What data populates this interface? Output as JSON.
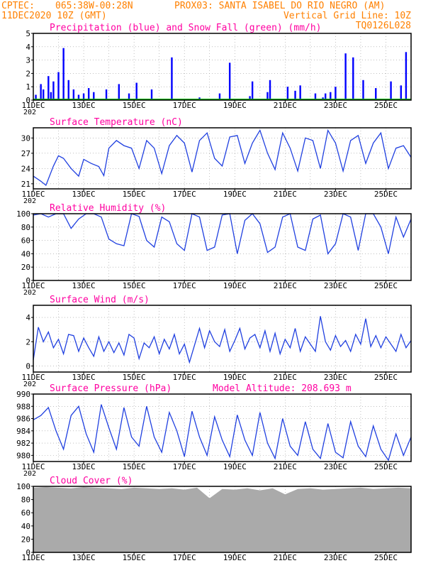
{
  "header": {
    "line1_left": "CPTEC:",
    "line1_coords": "065:38W-00:28N",
    "line1_station": "PROX03: SANTA ISABEL DO RIO NEGRO (AM)",
    "line2_left": "11DEC2020 10Z (GMT)",
    "line2_right": "Vertical Grid Line: 10Z",
    "line3_right": "TQ0126L028",
    "color": "#ff8000"
  },
  "colors": {
    "title": "#ff00a0",
    "line": "#2040e0",
    "bar_blue": "#0000ff",
    "snow_green": "#00b000",
    "cloud_gray": "#aaaaaa",
    "grid": "#999999"
  },
  "x_ticks": [
    "11DEC",
    "13DEC",
    "15DEC",
    "17DEC",
    "19DEC",
    "21DEC",
    "23DEC",
    "25DEC"
  ],
  "x_tick_partial": "202",
  "x_range_days": [
    0,
    15
  ],
  "chart_data": [
    {
      "type": "bar",
      "title": "Precipitation (blue) and Snow Fall (green) (mm/h)",
      "ylim": [
        0,
        5
      ],
      "yticks": [
        0,
        1,
        2,
        3,
        4,
        5
      ],
      "series": [
        {
          "name": "Precipitation",
          "x": [
            0.1,
            0.3,
            0.4,
            0.6,
            0.7,
            0.8,
            1.0,
            1.2,
            1.4,
            1.6,
            1.8,
            2.0,
            2.2,
            2.4,
            2.9,
            3.4,
            3.8,
            4.1,
            4.7,
            5.5,
            6.6,
            7.4,
            7.8,
            8.6,
            8.7,
            9.3,
            9.4,
            10.1,
            10.4,
            10.6,
            11.2,
            11.5,
            11.6,
            11.8,
            12.0,
            12.4,
            12.7,
            13.1,
            13.6,
            14.2,
            14.6,
            14.8
          ],
          "values": [
            0.4,
            1.2,
            0.8,
            1.8,
            0.6,
            1.4,
            2.1,
            3.9,
            1.5,
            0.8,
            0.4,
            0.5,
            0.9,
            0.6,
            0.8,
            1.2,
            0.5,
            1.3,
            0.8,
            3.2,
            0.2,
            0.5,
            2.8,
            0.3,
            1.4,
            0.6,
            1.5,
            1.0,
            0.7,
            1.1,
            0.5,
            0.2,
            0.5,
            0.6,
            1.0,
            3.5,
            3.2,
            1.5,
            0.9,
            1.4,
            1.1,
            3.6
          ]
        },
        {
          "name": "Snow Fall",
          "x": [
            0,
            15
          ],
          "values": [
            0,
            0
          ]
        }
      ]
    },
    {
      "type": "line",
      "title": "Surface Temperature (nC)",
      "ylim": [
        20,
        32
      ],
      "yticks": [
        21,
        24,
        27,
        30
      ],
      "x": [
        0,
        0.3,
        0.5,
        0.8,
        1.0,
        1.2,
        1.5,
        1.8,
        2.0,
        2.3,
        2.6,
        2.8,
        3.0,
        3.3,
        3.6,
        3.9,
        4.2,
        4.5,
        4.8,
        5.1,
        5.4,
        5.7,
        6.0,
        6.3,
        6.6,
        6.9,
        7.2,
        7.5,
        7.8,
        8.1,
        8.4,
        8.7,
        9.0,
        9.3,
        9.6,
        9.9,
        10.2,
        10.5,
        10.8,
        11.1,
        11.4,
        11.7,
        12.0,
        12.3,
        12.6,
        12.9,
        13.2,
        13.5,
        13.8,
        14.1,
        14.4,
        14.7,
        15.0
      ],
      "values": [
        22.5,
        21.5,
        20.7,
        24.5,
        26.5,
        26.0,
        24.0,
        22.5,
        25.8,
        25.0,
        24.4,
        22.6,
        28.0,
        29.5,
        28.5,
        28.0,
        24.0,
        29.5,
        28.0,
        23.0,
        28.5,
        30.5,
        29.0,
        23.3,
        29.5,
        31.0,
        26.0,
        24.5,
        30.2,
        30.5,
        25.0,
        29.0,
        31.5,
        27.0,
        23.8,
        31.0,
        28.0,
        23.5,
        30.0,
        29.5,
        24.0,
        31.5,
        29.0,
        23.5,
        29.5,
        30.5,
        25.0,
        29.0,
        31.0,
        24.0,
        28.0,
        28.5,
        26.2
      ]
    },
    {
      "type": "line",
      "title": "Relative Humidity (%)",
      "ylim": [
        0,
        100
      ],
      "yticks": [
        0,
        20,
        40,
        60,
        80,
        100
      ],
      "x": [
        0,
        0.3,
        0.6,
        0.9,
        1.2,
        1.5,
        1.8,
        2.1,
        2.4,
        2.7,
        3.0,
        3.3,
        3.6,
        3.9,
        4.2,
        4.5,
        4.8,
        5.1,
        5.4,
        5.7,
        6.0,
        6.3,
        6.6,
        6.9,
        7.2,
        7.5,
        7.8,
        8.1,
        8.4,
        8.7,
        9.0,
        9.3,
        9.6,
        9.9,
        10.2,
        10.5,
        10.8,
        11.1,
        11.4,
        11.7,
        12.0,
        12.3,
        12.6,
        12.9,
        13.2,
        13.5,
        13.8,
        14.1,
        14.4,
        14.7,
        15.0
      ],
      "values": [
        98,
        100,
        95,
        100,
        100,
        78,
        92,
        100,
        100,
        95,
        62,
        55,
        52,
        100,
        96,
        60,
        50,
        95,
        88,
        55,
        45,
        100,
        95,
        45,
        50,
        98,
        100,
        40,
        90,
        100,
        85,
        42,
        50,
        95,
        100,
        50,
        45,
        92,
        98,
        40,
        55,
        100,
        95,
        45,
        100,
        100,
        80,
        40,
        95,
        65,
        92
      ]
    },
    {
      "type": "line",
      "title": "Surface Wind (m/s)",
      "ylim": [
        -0.5,
        5
      ],
      "yticks": [
        0,
        2,
        4
      ],
      "x": [
        0,
        0.2,
        0.4,
        0.6,
        0.8,
        1.0,
        1.2,
        1.4,
        1.6,
        1.8,
        2.0,
        2.2,
        2.4,
        2.6,
        2.8,
        3.0,
        3.2,
        3.4,
        3.6,
        3.8,
        4.0,
        4.2,
        4.4,
        4.6,
        4.8,
        5.0,
        5.2,
        5.4,
        5.6,
        5.8,
        6.0,
        6.2,
        6.4,
        6.6,
        6.8,
        7.0,
        7.2,
        7.4,
        7.6,
        7.8,
        8.0,
        8.2,
        8.4,
        8.6,
        8.8,
        9.0,
        9.2,
        9.4,
        9.6,
        9.8,
        10.0,
        10.2,
        10.4,
        10.6,
        10.8,
        11.0,
        11.2,
        11.4,
        11.6,
        11.8,
        12.0,
        12.2,
        12.4,
        12.6,
        12.8,
        13.0,
        13.2,
        13.4,
        13.6,
        13.8,
        14.0,
        14.2,
        14.4,
        14.6,
        14.8,
        15.0
      ],
      "values": [
        0.5,
        3.2,
        2.0,
        2.8,
        1.5,
        2.2,
        1.0,
        2.6,
        2.5,
        1.2,
        2.3,
        1.5,
        0.8,
        2.4,
        1.2,
        2.0,
        1.1,
        1.9,
        0.9,
        2.6,
        2.3,
        0.6,
        1.9,
        1.5,
        2.4,
        1.0,
        2.2,
        1.4,
        2.6,
        1.0,
        1.8,
        0.3,
        1.7,
        3.1,
        1.5,
        2.9,
        2.0,
        1.6,
        3.0,
        1.2,
        2.1,
        3.1,
        1.4,
        2.3,
        2.6,
        1.5,
        2.9,
        1.2,
        2.7,
        1.0,
        2.2,
        1.5,
        3.1,
        1.2,
        2.4,
        1.8,
        1.2,
        4.1,
        2.0,
        1.3,
        2.5,
        1.6,
        2.1,
        1.2,
        2.6,
        1.8,
        3.9,
        1.6,
        2.5,
        1.5,
        2.4,
        1.8,
        1.2,
        2.6,
        1.5,
        2.1
      ]
    },
    {
      "type": "line",
      "title": "Surface Pressure (hPa)",
      "annotation": "Model Altitude: 208.693 m",
      "ylim": [
        979,
        990
      ],
      "yticks": [
        980,
        982,
        984,
        986,
        988,
        990
      ],
      "x": [
        0,
        0.3,
        0.6,
        0.9,
        1.2,
        1.5,
        1.8,
        2.1,
        2.4,
        2.7,
        3.0,
        3.3,
        3.6,
        3.9,
        4.2,
        4.5,
        4.8,
        5.1,
        5.4,
        5.7,
        6.0,
        6.3,
        6.6,
        6.9,
        7.2,
        7.5,
        7.8,
        8.1,
        8.4,
        8.7,
        9.0,
        9.3,
        9.6,
        9.9,
        10.2,
        10.5,
        10.8,
        11.1,
        11.4,
        11.7,
        12.0,
        12.3,
        12.6,
        12.9,
        13.2,
        13.5,
        13.8,
        14.1,
        14.4,
        14.7,
        15.0
      ],
      "values": [
        985.8,
        986.5,
        987.8,
        984.0,
        981.0,
        986.5,
        988.0,
        983.5,
        980.5,
        988.3,
        984.5,
        981.0,
        987.8,
        983.0,
        981.5,
        988.0,
        983.0,
        980.5,
        987.0,
        984.0,
        979.8,
        987.2,
        983.0,
        980.0,
        986.3,
        982.5,
        979.8,
        986.6,
        982.5,
        980.0,
        987.0,
        982.0,
        979.5,
        986.0,
        981.5,
        980.0,
        985.5,
        981.0,
        979.5,
        985.2,
        980.5,
        979.6,
        985.5,
        981.5,
        979.8,
        984.8,
        981.0,
        979.2,
        983.5,
        980.0,
        983.0
      ]
    },
    {
      "type": "area",
      "title": "Cloud Cover (%)",
      "ylim": [
        0,
        100
      ],
      "yticks": [
        0,
        20,
        40,
        60,
        80,
        100
      ],
      "x": [
        0,
        0.5,
        1.0,
        1.5,
        2.0,
        2.5,
        3.0,
        3.5,
        4.0,
        4.5,
        5.0,
        5.5,
        6.0,
        6.5,
        7.0,
        7.5,
        8.0,
        8.5,
        9.0,
        9.5,
        10.0,
        10.5,
        11.0,
        11.5,
        12.0,
        12.5,
        13.0,
        13.5,
        14.0,
        14.5,
        15.0
      ],
      "values": [
        98,
        99,
        98,
        97,
        99,
        98,
        97,
        96,
        98,
        97,
        96,
        97,
        95,
        98,
        82,
        96,
        95,
        97,
        94,
        97,
        88,
        96,
        97,
        95,
        96,
        97,
        98,
        96,
        97,
        98,
        97
      ]
    }
  ]
}
